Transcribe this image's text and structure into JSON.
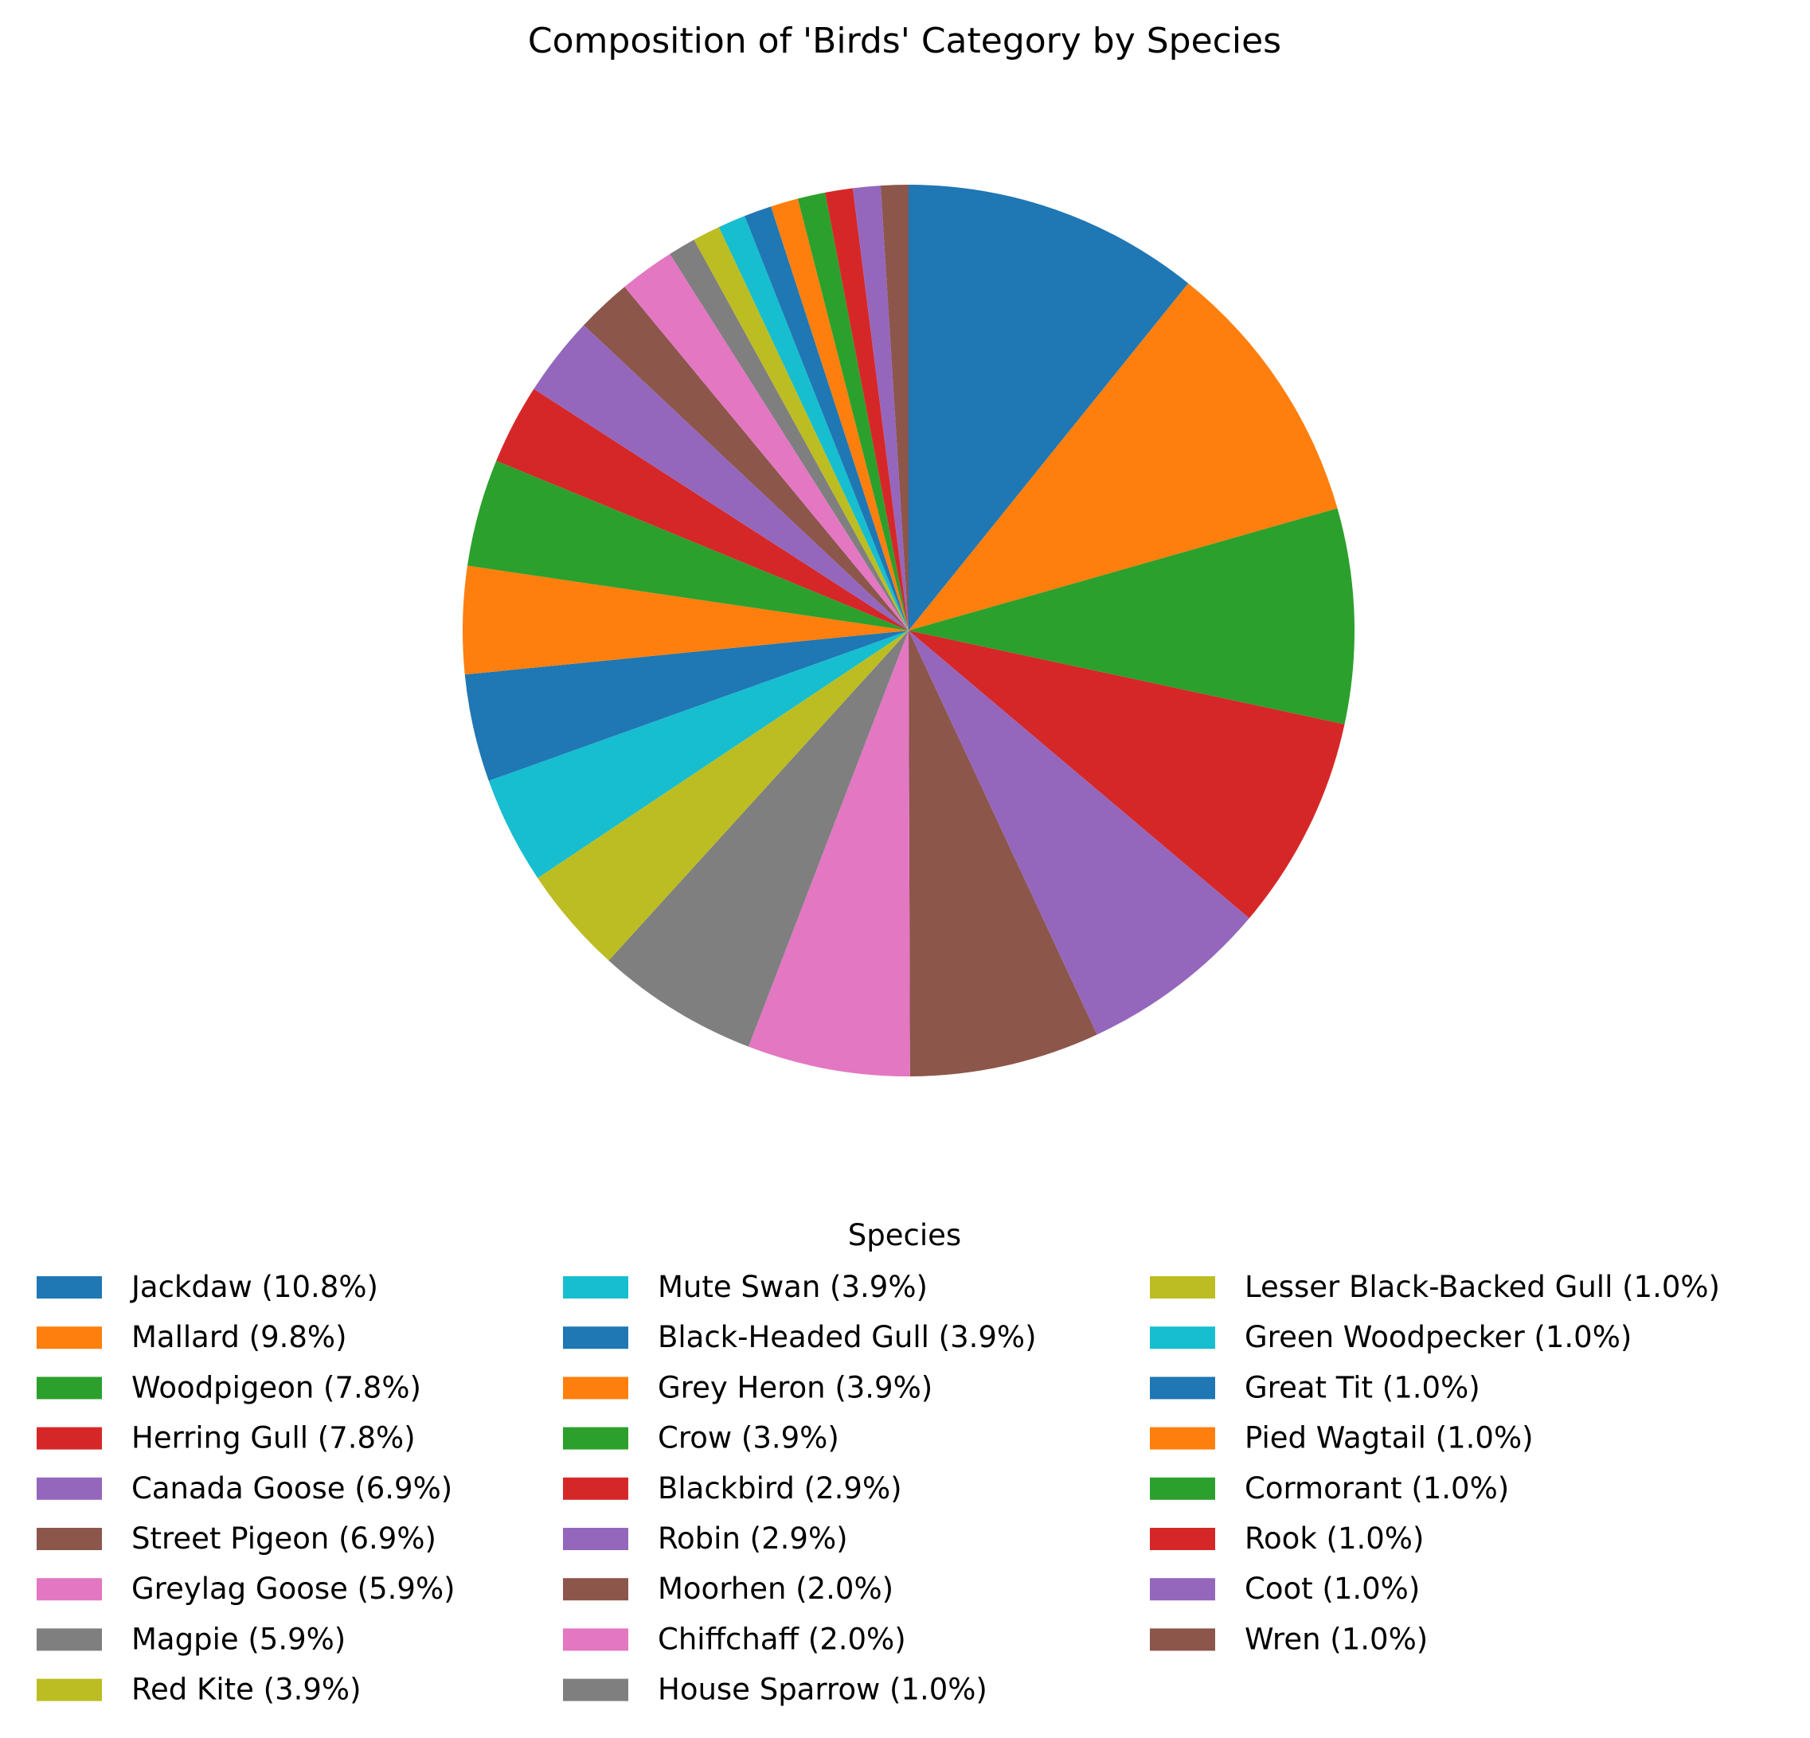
{
  "chart_data": {
    "type": "pie",
    "title": "Composition of 'Birds' Category by Species",
    "legend_title": "Species",
    "legend_placement": "bottom",
    "start_angle_deg": 90,
    "direction": "clockwise",
    "slices": [
      {
        "name": "Jackdaw",
        "percent": 10.8,
        "label": "Jackdaw (10.8%)",
        "color": "#1f77b4"
      },
      {
        "name": "Mallard",
        "percent": 9.8,
        "label": "Mallard (9.8%)",
        "color": "#ff7f0e"
      },
      {
        "name": "Woodpigeon",
        "percent": 7.8,
        "label": "Woodpigeon (7.8%)",
        "color": "#2ca02c"
      },
      {
        "name": "Herring Gull",
        "percent": 7.8,
        "label": "Herring Gull (7.8%)",
        "color": "#d62728"
      },
      {
        "name": "Canada Goose",
        "percent": 6.9,
        "label": "Canada Goose (6.9%)",
        "color": "#9467bd"
      },
      {
        "name": "Street Pigeon",
        "percent": 6.9,
        "label": "Street Pigeon (6.9%)",
        "color": "#8c564b"
      },
      {
        "name": "Greylag Goose",
        "percent": 5.9,
        "label": "Greylag Goose (5.9%)",
        "color": "#e377c2"
      },
      {
        "name": "Magpie",
        "percent": 5.9,
        "label": "Magpie (5.9%)",
        "color": "#7f7f7f"
      },
      {
        "name": "Red Kite",
        "percent": 3.9,
        "label": "Red Kite (3.9%)",
        "color": "#bcbd22"
      },
      {
        "name": "Mute Swan",
        "percent": 3.9,
        "label": "Mute Swan (3.9%)",
        "color": "#17becf"
      },
      {
        "name": "Black-Headed Gull",
        "percent": 3.9,
        "label": "Black-Headed Gull (3.9%)",
        "color": "#1f77b4"
      },
      {
        "name": "Grey Heron",
        "percent": 3.9,
        "label": "Grey Heron (3.9%)",
        "color": "#ff7f0e"
      },
      {
        "name": "Crow",
        "percent": 3.9,
        "label": "Crow (3.9%)",
        "color": "#2ca02c"
      },
      {
        "name": "Blackbird",
        "percent": 2.9,
        "label": "Blackbird (2.9%)",
        "color": "#d62728"
      },
      {
        "name": "Robin",
        "percent": 2.9,
        "label": "Robin (2.9%)",
        "color": "#9467bd"
      },
      {
        "name": "Moorhen",
        "percent": 2.0,
        "label": "Moorhen (2.0%)",
        "color": "#8c564b"
      },
      {
        "name": "Chiffchaff",
        "percent": 2.0,
        "label": "Chiffchaff (2.0%)",
        "color": "#e377c2"
      },
      {
        "name": "House Sparrow",
        "percent": 1.0,
        "label": "House Sparrow (1.0%)",
        "color": "#7f7f7f"
      },
      {
        "name": "Lesser Black-Backed Gull",
        "percent": 1.0,
        "label": "Lesser Black-Backed Gull (1.0%)",
        "color": "#bcbd22"
      },
      {
        "name": "Green Woodpecker",
        "percent": 1.0,
        "label": "Green Woodpecker (1.0%)",
        "color": "#17becf"
      },
      {
        "name": "Great Tit",
        "percent": 1.0,
        "label": "Great Tit (1.0%)",
        "color": "#1f77b4"
      },
      {
        "name": "Pied Wagtail",
        "percent": 1.0,
        "label": "Pied Wagtail (1.0%)",
        "color": "#ff7f0e"
      },
      {
        "name": "Cormorant",
        "percent": 1.0,
        "label": "Cormorant (1.0%)",
        "color": "#2ca02c"
      },
      {
        "name": "Rook",
        "percent": 1.0,
        "label": "Rook (1.0%)",
        "color": "#d62728"
      },
      {
        "name": "Coot",
        "percent": 1.0,
        "label": "Coot (1.0%)",
        "color": "#9467bd"
      },
      {
        "name": "Wren",
        "percent": 1.0,
        "label": "Wren (1.0%)",
        "color": "#8c564b"
      }
    ]
  }
}
